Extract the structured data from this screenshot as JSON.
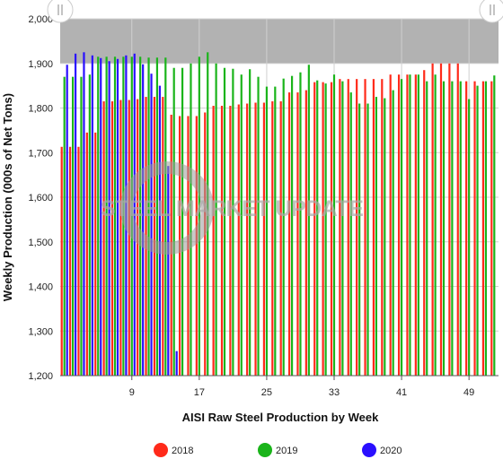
{
  "chart_data": {
    "type": "bar",
    "xlabel": "AISI Raw Steel Production by Week",
    "ylabel": "Weekly Production (000s of Net Tons)",
    "ylim": [
      1200,
      2000
    ],
    "yticks": [
      1200,
      1300,
      1400,
      1500,
      1600,
      1700,
      1800,
      1900,
      2000
    ],
    "yticks_labels": [
      "1,200",
      "1,300",
      "1,400",
      "1,500",
      "1,600",
      "1,700",
      "1,800",
      "1,900",
      "2,000"
    ],
    "xlim": [
      1,
      52
    ],
    "xticks": [
      9,
      17,
      25,
      33,
      41,
      49
    ],
    "grid": true,
    "legend_position": "bottom",
    "watermark": "STEEL MARKET UPDATE",
    "series": [
      {
        "name": "2018",
        "color": "#ff2a1a",
        "x": [
          1,
          2,
          3,
          4,
          5,
          6,
          7,
          8,
          9,
          10,
          11,
          12,
          13,
          14,
          15,
          16,
          17,
          18,
          19,
          20,
          21,
          22,
          23,
          24,
          25,
          26,
          27,
          28,
          29,
          30,
          31,
          32,
          33,
          34,
          35,
          36,
          37,
          38,
          39,
          40,
          41,
          42,
          43,
          44,
          45,
          46,
          47,
          48,
          49,
          50,
          51,
          52
        ],
        "values": [
          1713,
          1713,
          1713,
          1745,
          1745,
          1815,
          1815,
          1818,
          1818,
          1820,
          1825,
          1825,
          1825,
          1785,
          1782,
          1782,
          1782,
          1790,
          1805,
          1805,
          1805,
          1808,
          1810,
          1812,
          1812,
          1815,
          1815,
          1835,
          1835,
          1840,
          1858,
          1858,
          1858,
          1865,
          1865,
          1865,
          1865,
          1865,
          1865,
          1875,
          1875,
          1875,
          1875,
          1885,
          1900,
          1900,
          1900,
          1900,
          1860,
          1860,
          1860,
          1860
        ]
      },
      {
        "name": "2019",
        "color": "#1ab41a",
        "x": [
          1,
          2,
          3,
          4,
          5,
          6,
          7,
          8,
          9,
          10,
          11,
          12,
          13,
          14,
          15,
          16,
          17,
          18,
          19,
          20,
          21,
          22,
          23,
          24,
          25,
          26,
          27,
          28,
          29,
          30,
          31,
          32,
          33,
          34,
          35,
          36,
          37,
          38,
          39,
          40,
          41,
          42,
          43,
          44,
          45,
          46,
          47,
          48,
          49,
          50,
          51,
          52
        ],
        "values": [
          1870,
          1870,
          1870,
          1875,
          1915,
          1915,
          1915,
          1915,
          1915,
          1915,
          1913,
          1913,
          1913,
          1890,
          1890,
          1900,
          1915,
          1925,
          1900,
          1890,
          1888,
          1875,
          1887,
          1870,
          1848,
          1848,
          1866,
          1872,
          1880,
          1897,
          1862,
          1855,
          1875,
          1860,
          1835,
          1810,
          1810,
          1825,
          1822,
          1840,
          1865,
          1875,
          1875,
          1860,
          1875,
          1860,
          1860,
          1860,
          1820,
          1850,
          1860,
          1873
        ]
      },
      {
        "name": "2020",
        "color": "#2a0fff",
        "x": [
          1,
          2,
          3,
          4,
          5,
          6,
          7,
          8,
          9,
          10,
          11,
          12,
          13,
          14
        ],
        "values": [
          1897,
          1922,
          1925,
          1918,
          1912,
          1905,
          1910,
          1918,
          1922,
          1898,
          1877,
          1850,
          1670,
          1255
        ]
      }
    ]
  }
}
